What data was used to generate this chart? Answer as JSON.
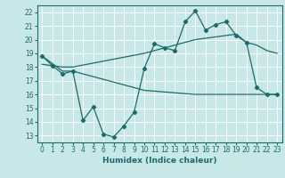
{
  "bg_color": "#c8e8e8",
  "grid_color": "#ffffff",
  "line_color": "#1a6b6b",
  "xlabel": "Humidex (Indice chaleur)",
  "xlim": [
    -0.5,
    23.5
  ],
  "ylim": [
    12.5,
    22.5
  ],
  "xticks": [
    0,
    1,
    2,
    3,
    4,
    5,
    6,
    7,
    8,
    9,
    10,
    11,
    12,
    13,
    14,
    15,
    16,
    17,
    18,
    19,
    20,
    21,
    22,
    23
  ],
  "yticks": [
    13,
    14,
    15,
    16,
    17,
    18,
    19,
    20,
    21,
    22
  ],
  "line1_x": [
    0,
    1,
    2,
    3,
    4,
    5,
    6,
    7,
    8,
    9,
    10,
    11,
    12,
    13,
    14,
    15,
    16,
    17,
    18,
    19,
    20,
    21,
    22,
    23
  ],
  "line1_y": [
    18.8,
    18.1,
    17.5,
    17.7,
    14.1,
    15.1,
    13.1,
    12.9,
    13.7,
    14.7,
    17.9,
    19.7,
    19.4,
    19.2,
    21.3,
    22.1,
    20.7,
    21.1,
    21.3,
    20.3,
    19.8,
    16.5,
    16.0,
    16.0
  ],
  "line2_x": [
    0,
    2,
    3,
    10,
    15,
    16,
    17,
    18,
    19,
    20,
    21,
    22,
    23
  ],
  "line2_y": [
    18.8,
    17.7,
    17.7,
    16.3,
    16.0,
    16.0,
    16.0,
    16.0,
    16.0,
    16.0,
    16.0,
    16.0,
    16.0
  ],
  "line3_x": [
    0,
    2,
    3,
    10,
    15,
    16,
    17,
    18,
    19,
    20,
    21,
    22,
    23
  ],
  "line3_y": [
    18.2,
    18.0,
    18.0,
    19.0,
    20.0,
    20.1,
    20.2,
    20.3,
    20.4,
    19.8,
    19.6,
    19.2,
    19.0
  ],
  "xlabel_fontsize": 6.5,
  "tick_labelsize": 5.5
}
